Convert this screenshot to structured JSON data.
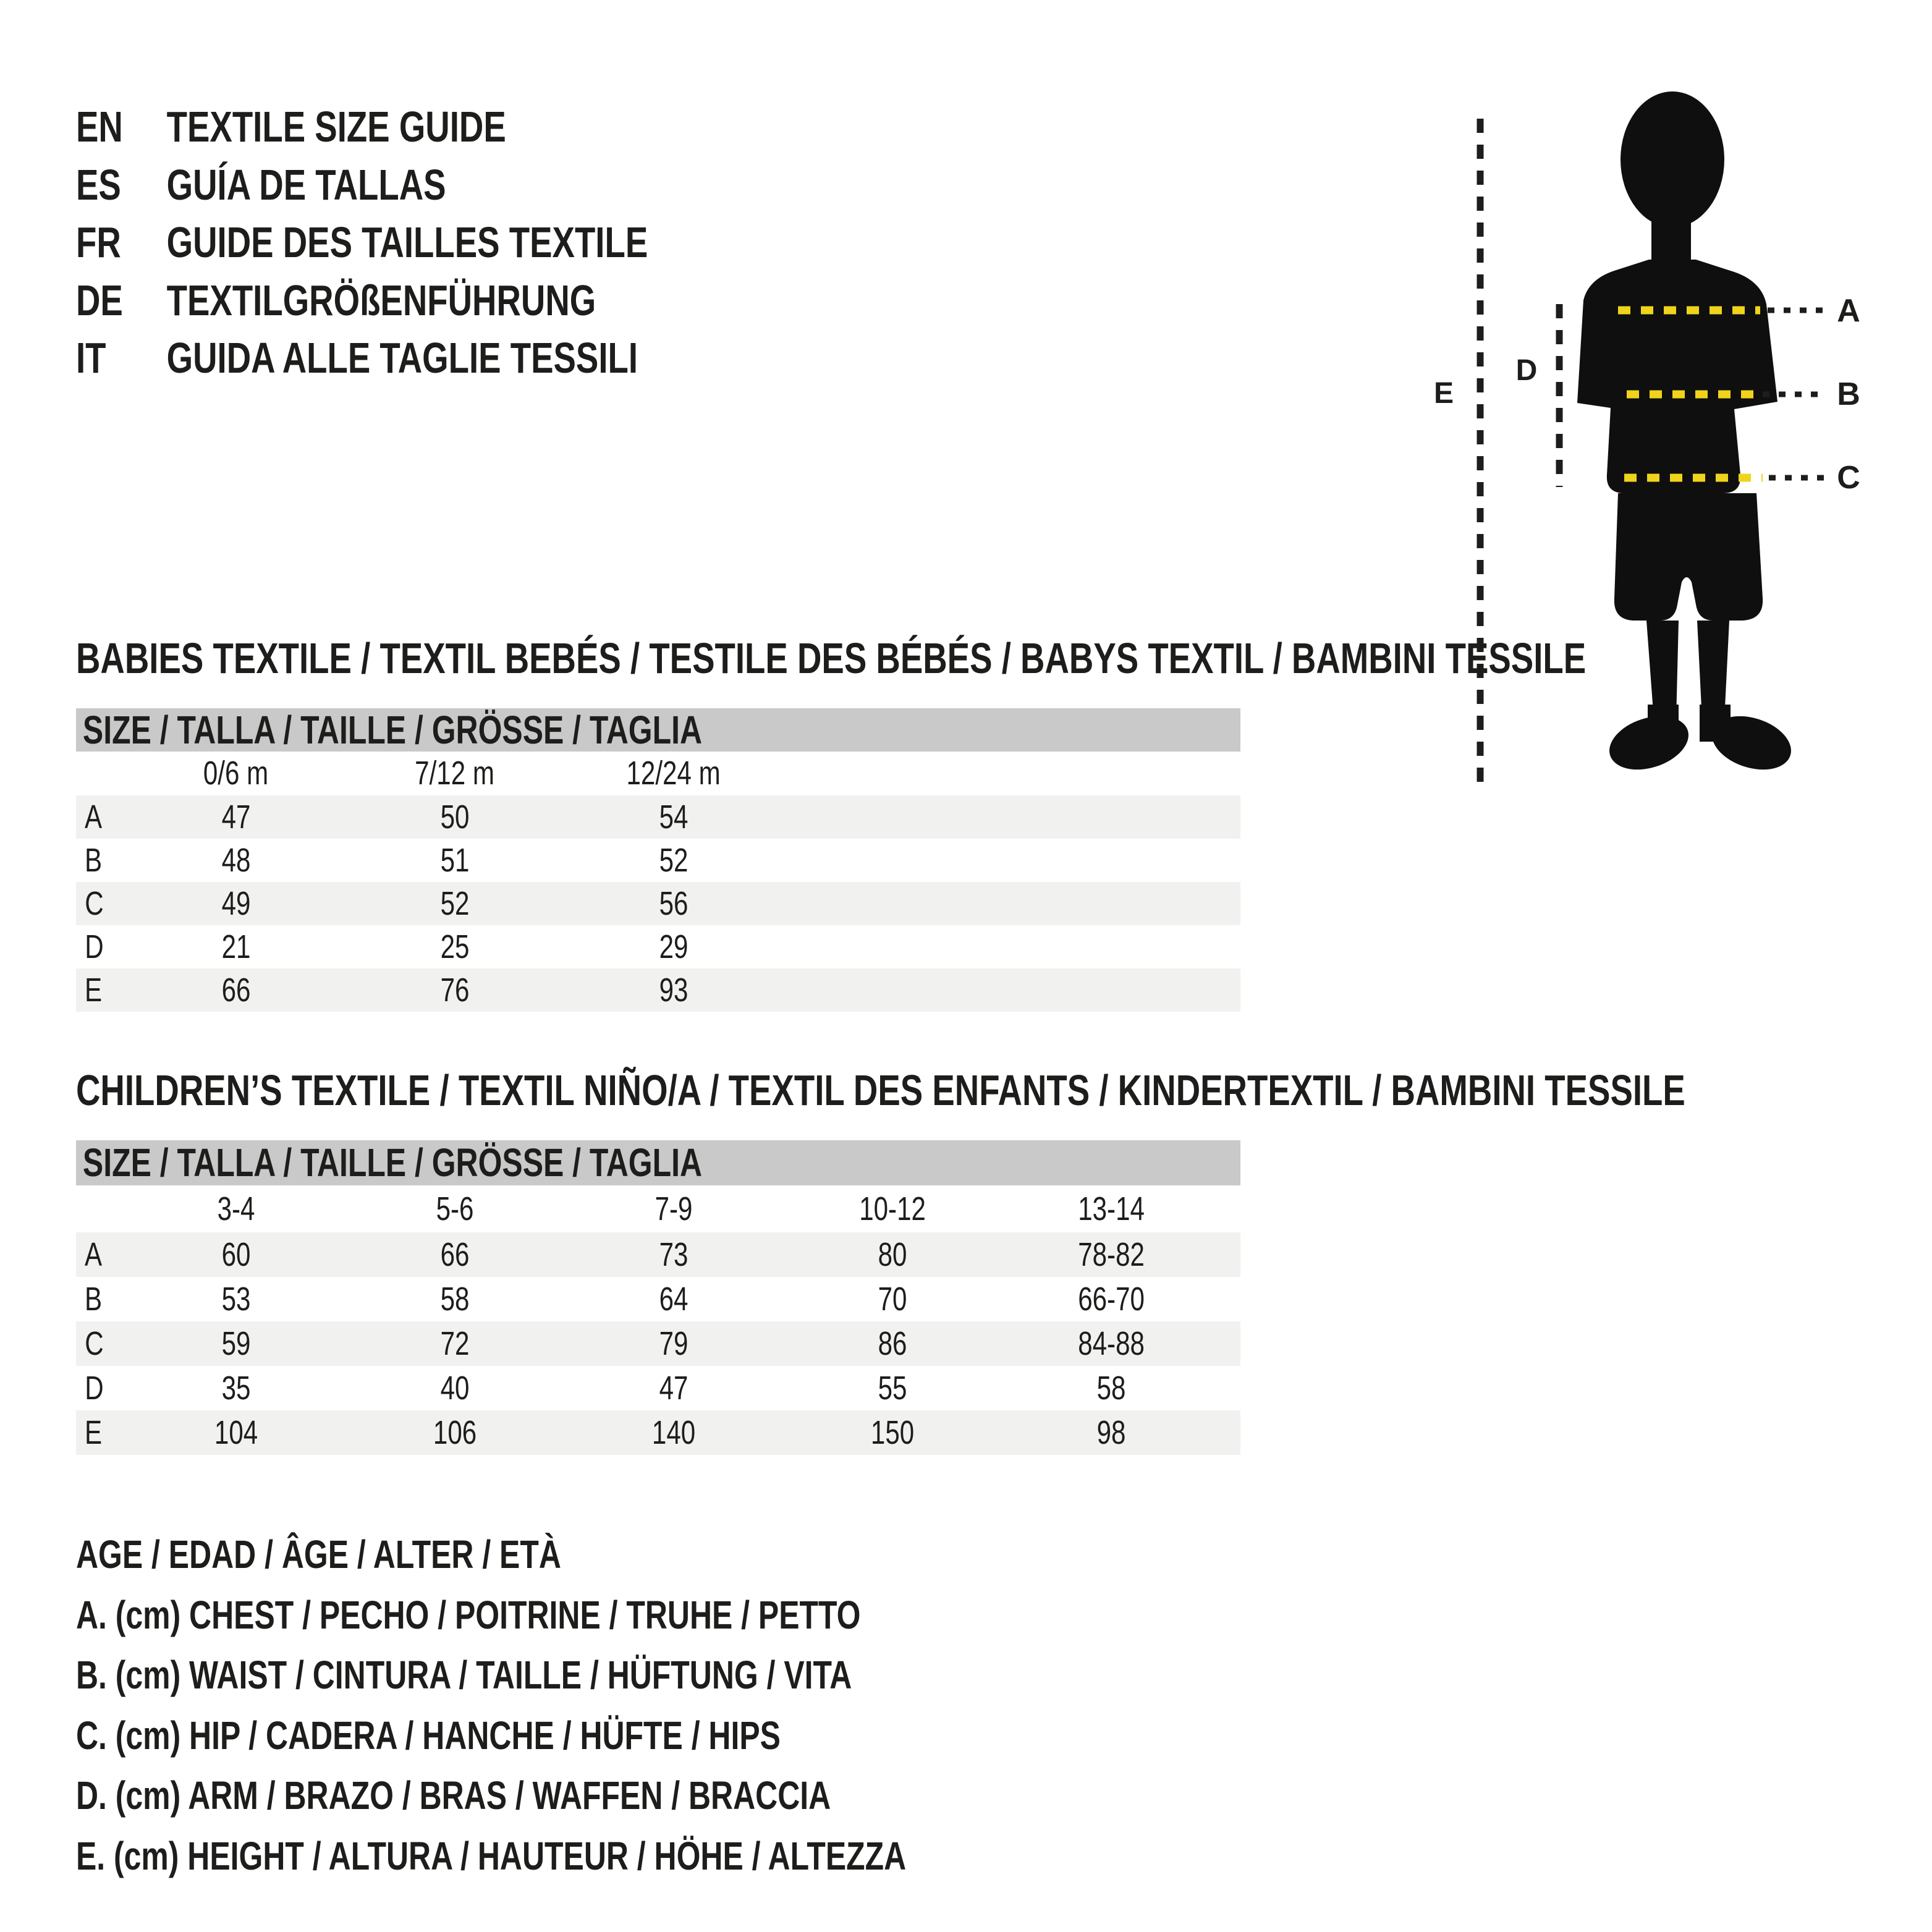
{
  "header": {
    "languages": [
      {
        "code": "EN",
        "title": "TEXTILE SIZE GUIDE"
      },
      {
        "code": "ES",
        "title": "GUÍA DE TALLAS"
      },
      {
        "code": "FR",
        "title": "GUIDE DES TAILLES TEXTILE"
      },
      {
        "code": "DE",
        "title": "TEXTILGRÖßENFÜHRUNG"
      },
      {
        "code": "IT",
        "title": "GUIDA ALLE TAGLIE TESSILI"
      }
    ]
  },
  "figure": {
    "accent_color": "#F0D41C",
    "silhouette_color": "#0F0F0F",
    "labels": {
      "a": "A",
      "b": "B",
      "c": "C",
      "d": "D",
      "e": "E"
    }
  },
  "babies_table": {
    "title": "BABIES TEXTILE / TEXTIL BEBÉS / TESTILE DES BÉBÉS / BABYS TEXTIL / BAMBINI TESSILE",
    "size_header": "SIZE / TALLA / TAILLE / GRÖSSE / TAGLIA",
    "columns": [
      "0/6 m",
      "7/12 m",
      "12/24 m"
    ],
    "rows": [
      {
        "label": "A",
        "values": [
          "47",
          "50",
          "54"
        ]
      },
      {
        "label": "B",
        "values": [
          "48",
          "51",
          "52"
        ]
      },
      {
        "label": "C",
        "values": [
          "49",
          "52",
          "56"
        ]
      },
      {
        "label": "D",
        "values": [
          "21",
          "25",
          "29"
        ]
      },
      {
        "label": "E",
        "values": [
          "66",
          "76",
          "93"
        ]
      }
    ]
  },
  "children_table": {
    "title": "CHILDREN’S TEXTILE / TEXTIL NIÑO/A / TEXTIL DES ENFANTS / KINDERTEXTIL / BAMBINI TESSILE",
    "size_header": "SIZE / TALLA / TAILLE / GRÖSSE / TAGLIA",
    "columns": [
      "3-4",
      "5-6",
      "7-9",
      "10-12",
      "13-14"
    ],
    "rows": [
      {
        "label": "A",
        "values": [
          "60",
          "66",
          "73",
          "80",
          "78-82"
        ]
      },
      {
        "label": "B",
        "values": [
          "53",
          "58",
          "64",
          "70",
          "66-70"
        ]
      },
      {
        "label": "C",
        "values": [
          "59",
          "72",
          "79",
          "86",
          "84-88"
        ]
      },
      {
        "label": "D",
        "values": [
          "35",
          "40",
          "47",
          "55",
          "58"
        ]
      },
      {
        "label": "E",
        "values": [
          "104",
          "106",
          "140",
          "150",
          "98"
        ]
      }
    ]
  },
  "legend": {
    "lines": [
      "AGE / EDAD / ÂGE / ALTER / ETÀ",
      "A. (cm) CHEST / PECHO / POITRINE / TRUHE / PETTO",
      "B. (cm) WAIST / CINTURA / TAILLE / HÜFTUNG / VITA",
      "C. (cm) HIP / CADERA / HANCHE / HÜFTE / HIPS",
      "D. (cm) ARM / BRAZO / BRAS / WAFFEN / BRACCIA",
      "E. (cm) HEIGHT / ALTURA / HAUTEUR / HÖHE / ALTEZZA"
    ]
  }
}
